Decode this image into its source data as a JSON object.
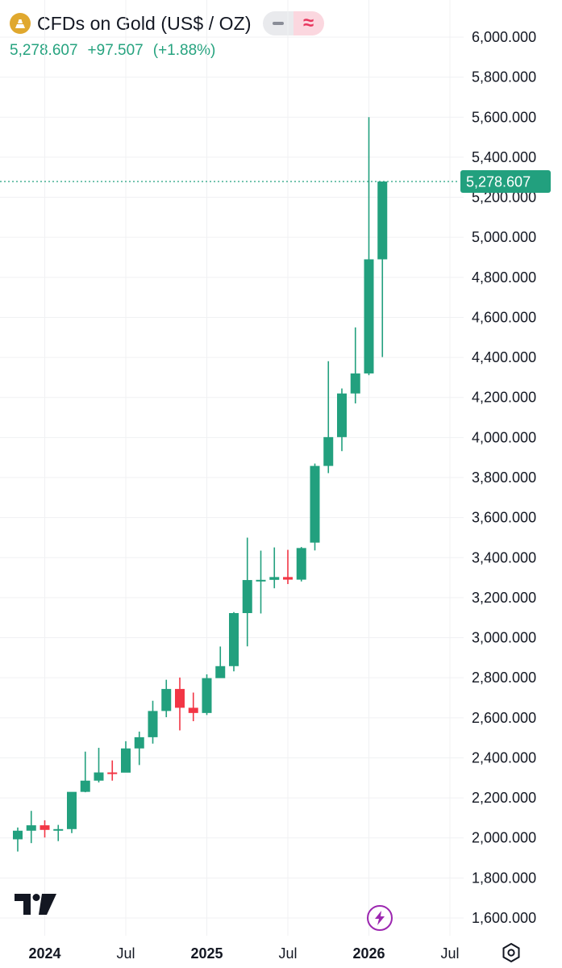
{
  "header": {
    "title": "CFDs on Gold (US$ / OZ)",
    "last_price": "5,278.607",
    "change": "+97.507",
    "change_pct": "(+1.88%)",
    "logo_icon": "gold-bars-icon",
    "accent_up": "#22a07e",
    "accent_down": "#f23645"
  },
  "price_badge": "5,278.607",
  "chart_data": {
    "type": "candlestick",
    "interval": "monthly",
    "y_range": [
      1600,
      6000
    ],
    "y_ticks": [
      {
        "value": 6000,
        "label": "6,000.000"
      },
      {
        "value": 5800,
        "label": "5,800.000"
      },
      {
        "value": 5600,
        "label": "5,600.000"
      },
      {
        "value": 5400,
        "label": "5,400.000"
      },
      {
        "value": 5200,
        "label": "5,200.000"
      },
      {
        "value": 5000,
        "label": "5,000.000"
      },
      {
        "value": 4800,
        "label": "4,800.000"
      },
      {
        "value": 4600,
        "label": "4,600.000"
      },
      {
        "value": 4400,
        "label": "4,400.000"
      },
      {
        "value": 4200,
        "label": "4,200.000"
      },
      {
        "value": 4000,
        "label": "4,000.000"
      },
      {
        "value": 3800,
        "label": "3,800.000"
      },
      {
        "value": 3600,
        "label": "3,600.000"
      },
      {
        "value": 3400,
        "label": "3,400.000"
      },
      {
        "value": 3200,
        "label": "3,200.000"
      },
      {
        "value": 3000,
        "label": "3,000.000"
      },
      {
        "value": 2800,
        "label": "2,800.000"
      },
      {
        "value": 2600,
        "label": "2,600.000"
      },
      {
        "value": 2400,
        "label": "2,400.000"
      },
      {
        "value": 2200,
        "label": "2,200.000"
      },
      {
        "value": 2000,
        "label": "2,000.000"
      },
      {
        "value": 1800,
        "label": "1,800.000"
      },
      {
        "value": 1600,
        "label": "1,600.000"
      }
    ],
    "x_ticks": [
      {
        "month": "2024-01",
        "label": "2024",
        "year": true
      },
      {
        "month": "2024-07",
        "label": "Jul",
        "year": false
      },
      {
        "month": "2025-01",
        "label": "2025",
        "year": true
      },
      {
        "month": "2025-07",
        "label": "Jul",
        "year": false
      },
      {
        "month": "2026-01",
        "label": "2026",
        "year": true
      },
      {
        "month": "2026-07",
        "label": "Jul",
        "year": false
      }
    ],
    "candles": [
      {
        "month": "2023-11",
        "open": 1993,
        "high": 2052,
        "low": 1932,
        "close": 2036
      },
      {
        "month": "2023-12",
        "open": 2036,
        "high": 2135,
        "low": 1974,
        "close": 2063
      },
      {
        "month": "2024-01",
        "open": 2063,
        "high": 2088,
        "low": 2002,
        "close": 2040
      },
      {
        "month": "2024-02",
        "open": 2040,
        "high": 2065,
        "low": 1984,
        "close": 2044
      },
      {
        "month": "2024-03",
        "open": 2044,
        "high": 2223,
        "low": 2024,
        "close": 2230
      },
      {
        "month": "2024-04",
        "open": 2230,
        "high": 2431,
        "low": 2228,
        "close": 2286
      },
      {
        "month": "2024-05",
        "open": 2286,
        "high": 2450,
        "low": 2277,
        "close": 2327
      },
      {
        "month": "2024-06",
        "open": 2327,
        "high": 2387,
        "low": 2286,
        "close": 2326
      },
      {
        "month": "2024-07",
        "open": 2326,
        "high": 2483,
        "low": 2353,
        "close": 2447
      },
      {
        "month": "2024-08",
        "open": 2447,
        "high": 2531,
        "low": 2364,
        "close": 2503
      },
      {
        "month": "2024-09",
        "open": 2503,
        "high": 2685,
        "low": 2471,
        "close": 2634
      },
      {
        "month": "2024-10",
        "open": 2634,
        "high": 2790,
        "low": 2603,
        "close": 2744
      },
      {
        "month": "2024-11",
        "open": 2744,
        "high": 2801,
        "low": 2537,
        "close": 2650
      },
      {
        "month": "2024-12",
        "open": 2650,
        "high": 2726,
        "low": 2583,
        "close": 2624
      },
      {
        "month": "2025-01",
        "open": 2624,
        "high": 2817,
        "low": 2614,
        "close": 2798
      },
      {
        "month": "2025-02",
        "open": 2798,
        "high": 2956,
        "low": 2833,
        "close": 2858
      },
      {
        "month": "2025-03",
        "open": 2858,
        "high": 3128,
        "low": 2832,
        "close": 3123
      },
      {
        "month": "2025-04",
        "open": 3123,
        "high": 3500,
        "low": 2957,
        "close": 3288
      },
      {
        "month": "2025-05",
        "open": 3288,
        "high": 3435,
        "low": 3121,
        "close": 3289
      },
      {
        "month": "2025-06",
        "open": 3289,
        "high": 3451,
        "low": 3247,
        "close": 3303
      },
      {
        "month": "2025-07",
        "open": 3303,
        "high": 3439,
        "low": 3268,
        "close": 3290
      },
      {
        "month": "2025-08",
        "open": 3290,
        "high": 3453,
        "low": 3281,
        "close": 3448
      },
      {
        "month": "2025-09",
        "open": 3475,
        "high": 3870,
        "low": 3436,
        "close": 3858
      },
      {
        "month": "2025-10",
        "open": 3858,
        "high": 4381,
        "low": 3822,
        "close": 4002
      },
      {
        "month": "2025-11",
        "open": 4002,
        "high": 4245,
        "low": 3932,
        "close": 4220
      },
      {
        "month": "2025-12",
        "open": 4220,
        "high": 4550,
        "low": 4170,
        "close": 4320
      },
      {
        "month": "2026-01",
        "open": 4320,
        "high": 5600,
        "low": 4311,
        "close": 4890
      },
      {
        "month": "2026-02",
        "open": 4890,
        "high": 5276,
        "low": 4402,
        "close": 5278.607
      }
    ],
    "last_price": 5278.607
  }
}
